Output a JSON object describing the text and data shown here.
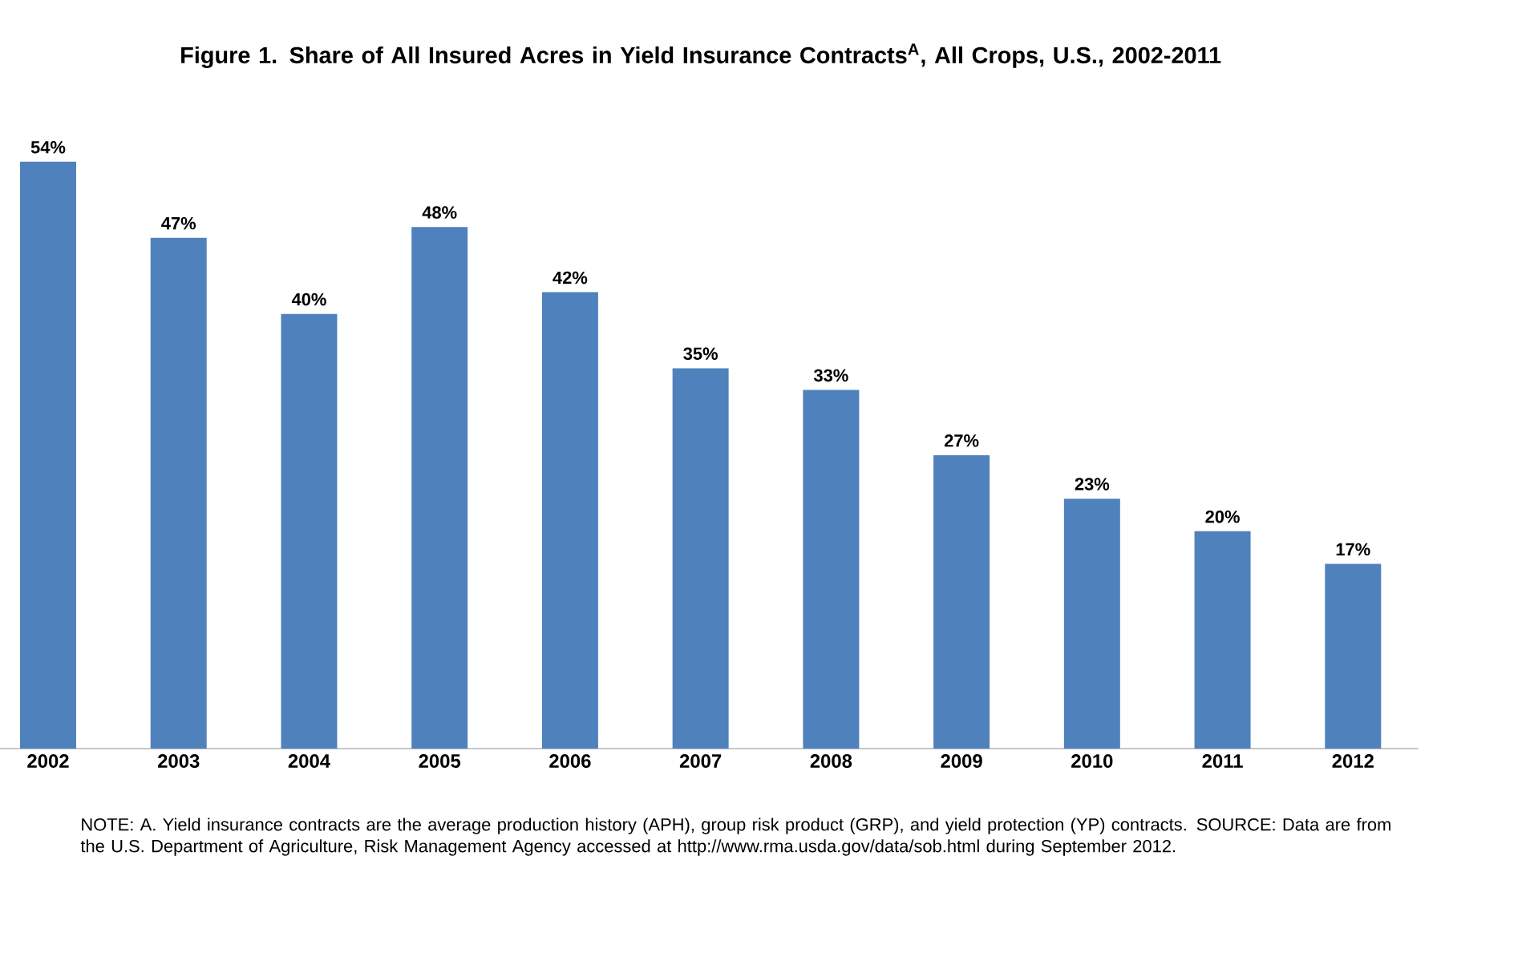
{
  "chart_data": {
    "type": "bar",
    "title": "Figure 1. Share of All Insured Acres in Yield Insurance Contracts$^{A}$, All Crops, U.S., 2002-2011",
    "categories": [
      "2002",
      "2003",
      "2004",
      "2005",
      "2006",
      "2007",
      "2008",
      "2009",
      "2010",
      "2011",
      "2012"
    ],
    "values": [
      54,
      47,
      40,
      48,
      42,
      35,
      33,
      27,
      23,
      20,
      17
    ],
    "value_labels": [
      "54%",
      "47%",
      "40%",
      "48%",
      "42%",
      "35%",
      "33%",
      "27%",
      "23%",
      "20%",
      "17%"
    ],
    "color": "#4f81bd",
    "annotations": [
      "NOTE:  A.  Yield insurance contracts are the average production history (APH),  group risk product (GRP), and yield protection (YP)  contracts.  SOURCE:  Data are from the U.S. Department of Agriculture, Risk Management Agency accessed at http://www.rma.usda.gov/data/sob.html during September 2012."
    ]
  }
}
